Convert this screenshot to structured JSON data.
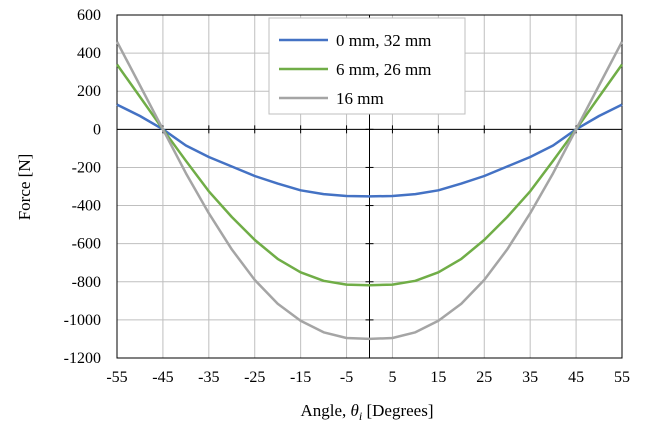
{
  "chart_data": {
    "type": "line",
    "title": "",
    "xlabel": "Angle, θi [Degrees]",
    "xlabel_main": "Angle, ",
    "xlabel_symbol": "θ",
    "xlabel_sub": "i",
    "xlabel_unit": " [Degrees]",
    "ylabel": "Force [N]",
    "xlim": [
      -55,
      55
    ],
    "ylim": [
      -1200,
      600
    ],
    "xticks": [
      -55,
      -45,
      -35,
      -25,
      -15,
      -5,
      5,
      15,
      25,
      35,
      45,
      55
    ],
    "yticks": [
      600,
      400,
      200,
      0,
      -200,
      -400,
      -600,
      -800,
      -1000,
      -1200
    ],
    "grid": true,
    "legend_position": "top-center",
    "series": [
      {
        "name": "0 mm, 32 mm",
        "color": "#4472C4",
        "x": [
          -55,
          -50,
          -45,
          -40,
          -35,
          -30,
          -25,
          -20,
          -15,
          -10,
          -5,
          0,
          5,
          10,
          15,
          20,
          25,
          30,
          35,
          40,
          45,
          50,
          55
        ],
        "y": [
          130,
          70,
          0,
          -85,
          -145,
          -195,
          -245,
          -285,
          -320,
          -340,
          -350,
          -352,
          -350,
          -340,
          -320,
          -285,
          -245,
          -195,
          -145,
          -85,
          0,
          70,
          130
        ]
      },
      {
        "name": "6 mm, 26 mm",
        "color": "#70AD47",
        "x": [
          -55,
          -50,
          -45,
          -40,
          -35,
          -30,
          -25,
          -20,
          -15,
          -10,
          -5,
          0,
          5,
          10,
          15,
          20,
          25,
          30,
          35,
          40,
          45,
          50,
          55
        ],
        "y": [
          340,
          170,
          0,
          -165,
          -325,
          -460,
          -580,
          -680,
          -750,
          -795,
          -815,
          -818,
          -815,
          -795,
          -750,
          -680,
          -580,
          -460,
          -325,
          -165,
          0,
          170,
          340
        ]
      },
      {
        "name": "16 mm",
        "color": "#A5A5A5",
        "x": [
          -55,
          -50,
          -45,
          -40,
          -35,
          -30,
          -25,
          -20,
          -15,
          -10,
          -5,
          0,
          5,
          10,
          15,
          20,
          25,
          30,
          35,
          40,
          45,
          50,
          55
        ],
        "y": [
          460,
          230,
          0,
          -230,
          -440,
          -630,
          -790,
          -915,
          -1005,
          -1065,
          -1095,
          -1100,
          -1095,
          -1065,
          -1005,
          -915,
          -790,
          -630,
          -440,
          -230,
          0,
          230,
          460
        ]
      }
    ]
  }
}
